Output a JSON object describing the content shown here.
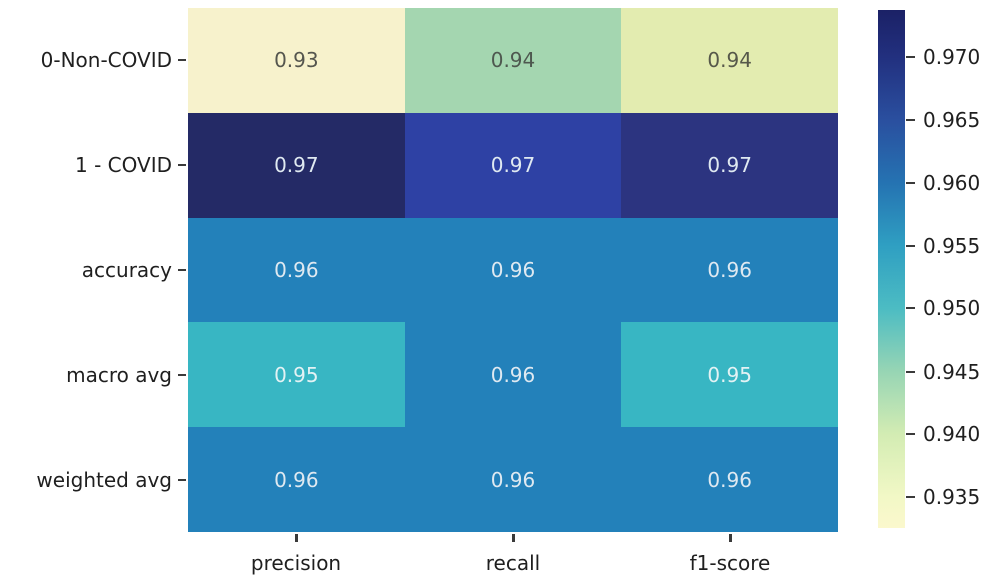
{
  "chart_data": {
    "type": "heatmap",
    "title": "",
    "xlabel": "",
    "ylabel": "",
    "rows": [
      "0-Non-COVID",
      "1 - COVID",
      "accuracy",
      "macro avg",
      "weighted avg"
    ],
    "columns": [
      "precision",
      "recall",
      "f1-score"
    ],
    "values": [
      [
        0.93,
        0.94,
        0.94
      ],
      [
        0.97,
        0.97,
        0.97
      ],
      [
        0.96,
        0.96,
        0.96
      ],
      [
        0.95,
        0.96,
        0.95
      ],
      [
        0.96,
        0.96,
        0.96
      ]
    ],
    "annotations": [
      [
        "0.93",
        "0.94",
        "0.94"
      ],
      [
        "0.97",
        "0.97",
        "0.97"
      ],
      [
        "0.96",
        "0.96",
        "0.96"
      ],
      [
        "0.95",
        "0.96",
        "0.95"
      ],
      [
        "0.96",
        "0.96",
        "0.96"
      ]
    ],
    "cell_colors": [
      [
        "#f7f2cc",
        "#a4d6b0",
        "#e3ecb0"
      ],
      [
        "#242a66",
        "#2e41a4",
        "#2c3480"
      ],
      [
        "#2381ba",
        "#2381ba",
        "#2381ba"
      ],
      [
        "#38b6c3",
        "#2381ba",
        "#38b6c3"
      ],
      [
        "#2381ba",
        "#2381ba",
        "#2381ba"
      ]
    ],
    "text_colors": [
      [
        "#55564e",
        "#4e584f",
        "#56584a"
      ],
      [
        "#dfe9f1",
        "#dfe9f1",
        "#dfe9f1"
      ],
      [
        "#dfe9f1",
        "#dfe9f1",
        "#dfe9f1"
      ],
      [
        "#e3f2f4",
        "#dfe9f1",
        "#e3f2f4"
      ],
      [
        "#dfe9f1",
        "#dfe9f1",
        "#dfe9f1"
      ]
    ],
    "colormap": "YlGnBu",
    "vmin": 0.93,
    "vmax": 0.97,
    "legend_position": "right-colorbar",
    "grid": false,
    "colorbar": {
      "ticks": [
        "0.970",
        "0.965",
        "0.960",
        "0.955",
        "0.950",
        "0.945",
        "0.940",
        "0.935"
      ],
      "gradient": [
        {
          "pos": "0%",
          "color": "#1b2166"
        },
        {
          "pos": "9.1%",
          "color": "#22307f"
        },
        {
          "pos": "21.2%",
          "color": "#2a4f9f"
        },
        {
          "pos": "33.4%",
          "color": "#2573b2"
        },
        {
          "pos": "45.5%",
          "color": "#2f9fc2"
        },
        {
          "pos": "57.6%",
          "color": "#4cbcc3"
        },
        {
          "pos": "69.8%",
          "color": "#97d5b4"
        },
        {
          "pos": "81.9%",
          "color": "#d3ecb3"
        },
        {
          "pos": "94.1%",
          "color": "#f2f8c6"
        },
        {
          "pos": "100%",
          "color": "#fbf8cd"
        }
      ]
    }
  }
}
